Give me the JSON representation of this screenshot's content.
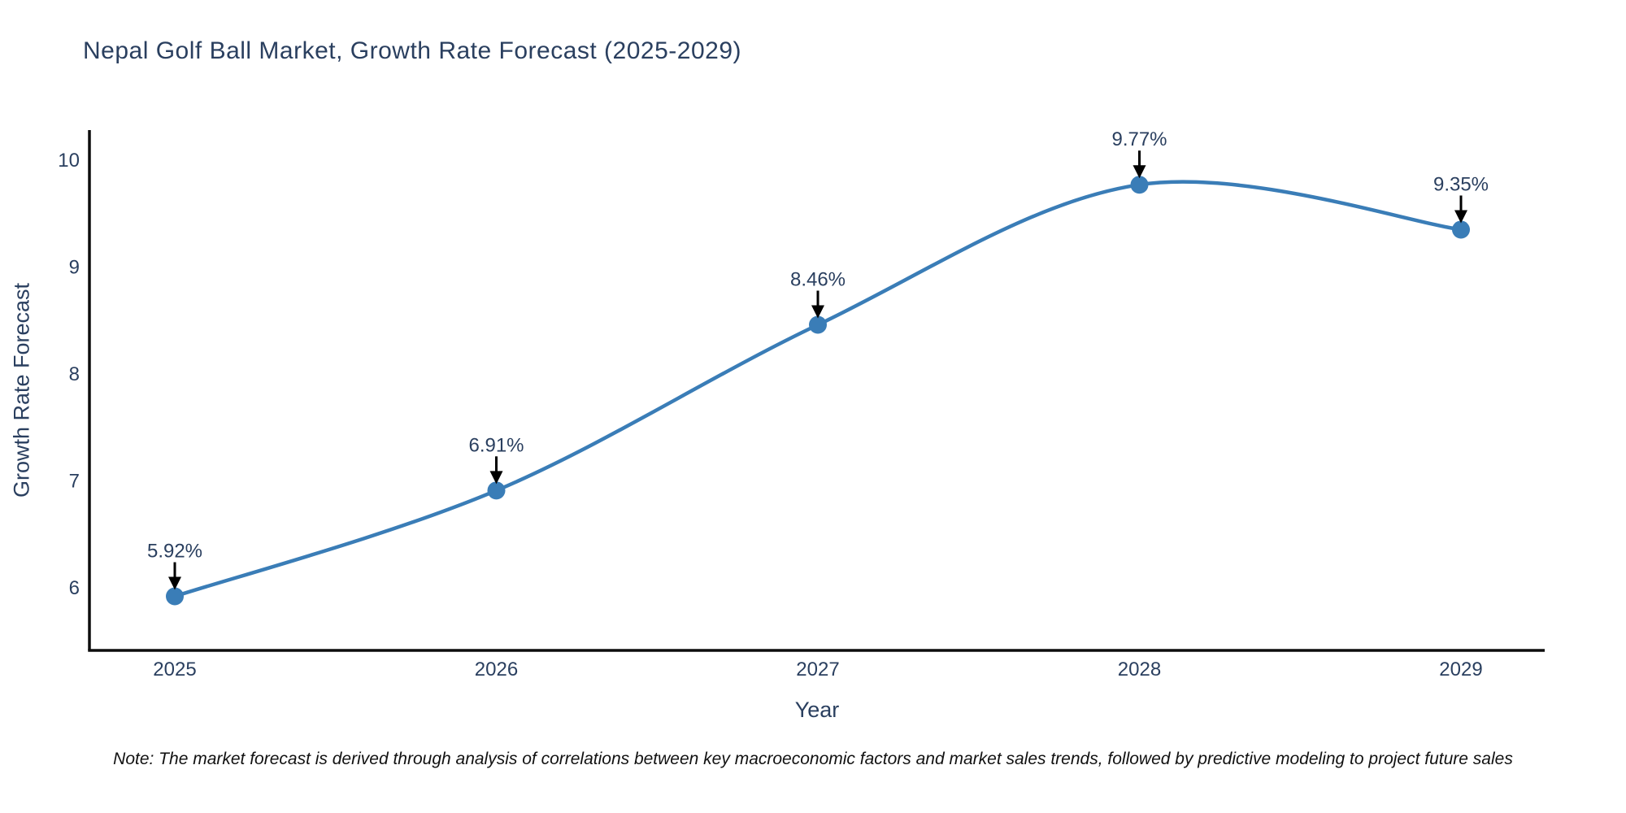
{
  "title": "Nepal Golf Ball Market, Growth Rate Forecast (2025-2029)",
  "note": "Note: The market forecast is derived through analysis of correlations between key macroeconomic factors and market sales trends, followed by predictive modeling to project future sales",
  "chart_data": {
    "type": "line",
    "line_shape": "spline",
    "title": "Nepal Golf Ball Market, Growth Rate Forecast (2025-2029)",
    "xlabel": "Year",
    "ylabel": "Growth Rate Forecast",
    "x": [
      2025,
      2026,
      2027,
      2028,
      2029
    ],
    "values": [
      5.92,
      6.91,
      8.46,
      9.77,
      9.35
    ],
    "point_labels": [
      "5.92%",
      "6.91%",
      "8.46%",
      "9.77%",
      "9.35%"
    ],
    "xtick_labels": [
      "2025",
      "2026",
      "2027",
      "2028",
      "2029"
    ],
    "ytick_values": [
      6,
      7,
      8,
      9,
      10
    ],
    "ylim": [
      5.4,
      10.3
    ],
    "grid": false,
    "legend": "none",
    "annotations_have_arrows": true,
    "colors": {
      "line": "#3a7db7",
      "marker": "#3a7db7",
      "text": "#2a3f5f",
      "axis": "#0d0d0d",
      "arrow": "#000000",
      "background": "#ffffff"
    }
  }
}
